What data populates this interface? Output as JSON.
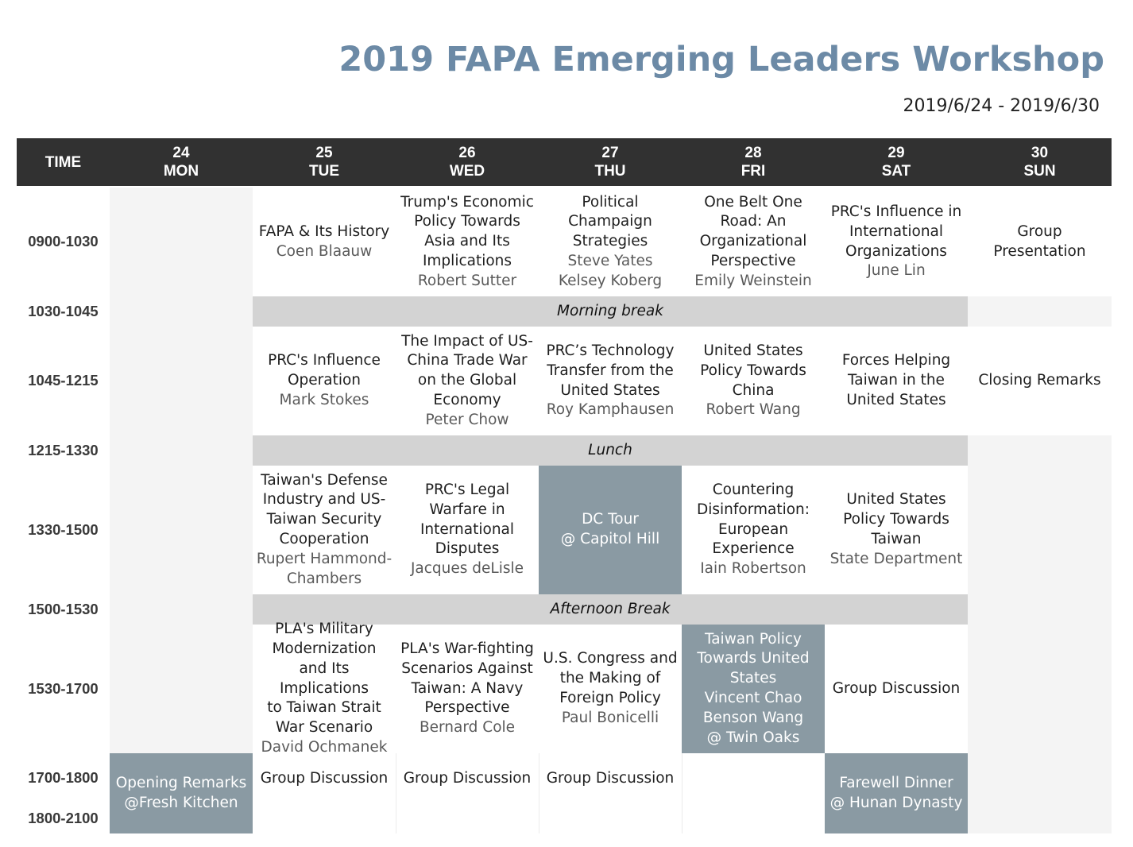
{
  "header": {
    "title": "2019 FAPA Emerging Leaders Workshop",
    "dates": "2019/6/24 - 2019/6/30"
  },
  "columns": {
    "time": "TIME",
    "days": [
      {
        "num": "24",
        "day": "MON"
      },
      {
        "num": "25",
        "day": "TUE"
      },
      {
        "num": "26",
        "day": "WED"
      },
      {
        "num": "27",
        "day": "THU"
      },
      {
        "num": "28",
        "day": "FRI"
      },
      {
        "num": "29",
        "day": "SAT"
      },
      {
        "num": "30",
        "day": "SUN"
      }
    ]
  },
  "times": [
    "0900-1030",
    "1030-1045",
    "1045-1215",
    "1215-1330",
    "1330-1500",
    "1500-1530",
    "1530-1700",
    "1700-1800",
    "1800-2100"
  ],
  "breaks": {
    "morning": "Morning break",
    "lunch": "Lunch",
    "afternoon": "Afternoon Break"
  },
  "sessions": {
    "s0900": {
      "tue": {
        "title": [
          "FAPA & Its History"
        ],
        "speaker": [
          "Coen Blaauw"
        ]
      },
      "wed": {
        "title": [
          "Trump's Economic",
          "Policy Towards",
          "Asia and Its",
          "Implications"
        ],
        "speaker": [
          "Robert Sutter"
        ]
      },
      "thu": {
        "title": [
          "Political",
          "Champaign",
          "Strategies"
        ],
        "speaker": [
          "Steve Yates",
          "Kelsey Koberg"
        ]
      },
      "fri": {
        "title": [
          "One Belt One",
          "Road: An",
          "Organizational",
          "Perspective"
        ],
        "speaker": [
          "Emily Weinstein"
        ]
      },
      "sat": {
        "title": [
          "PRC's Influence in",
          "International",
          "Organizations"
        ],
        "speaker": [
          "June Lin"
        ]
      },
      "sun": {
        "title": [
          "Group",
          "Presentation"
        ],
        "speaker": []
      }
    },
    "s1045": {
      "tue": {
        "title": [
          "PRC's Influence",
          "Operation"
        ],
        "speaker": [
          "Mark Stokes"
        ]
      },
      "wed": {
        "title": [
          "The Impact of US-",
          "China Trade War",
          "on the Global",
          "Economy"
        ],
        "speaker": [
          "Peter Chow"
        ]
      },
      "thu": {
        "title": [
          "PRC’s Technology",
          "Transfer from the",
          "United States"
        ],
        "speaker": [
          "Roy Kamphausen"
        ]
      },
      "fri": {
        "title": [
          "United States",
          "Policy Towards",
          "China"
        ],
        "speaker": [
          "Robert Wang"
        ]
      },
      "sat": {
        "title": [
          "Forces Helping",
          "Taiwan in the",
          "United States"
        ],
        "speaker": []
      },
      "sun": {
        "title": [
          "Closing Remarks"
        ],
        "speaker": []
      }
    },
    "s1330": {
      "tue": {
        "title": [
          "Taiwan's Defense",
          "Industry and US-",
          "Taiwan Security",
          "Cooperation"
        ],
        "speaker": [
          "Rupert Hammond-",
          "Chambers"
        ]
      },
      "wed": {
        "title": [
          "PRC's Legal",
          "Warfare in",
          "International",
          "Disputes"
        ],
        "speaker": [
          "Jacques deLisle"
        ]
      },
      "thu": {
        "title": [
          "DC Tour",
          "@ Capitol Hill"
        ],
        "speaker": []
      },
      "fri": {
        "title": [
          "Countering",
          "Disinformation:",
          "European",
          "Experience"
        ],
        "speaker": [
          "Iain Robertson"
        ]
      },
      "sat": {
        "title": [
          "United States",
          "Policy Towards",
          "Taiwan"
        ],
        "speaker": [
          "State Department"
        ]
      }
    },
    "s1530": {
      "tue": {
        "title": [
          "PLA's Military",
          "Modernization",
          "and Its Implications",
          "to Taiwan Strait",
          "War Scenario"
        ],
        "speaker": [
          "David Ochmanek"
        ]
      },
      "wed": {
        "title": [
          "PLA's War-fighting",
          "Scenarios Against",
          "Taiwan: A Navy",
          "Perspective"
        ],
        "speaker": [
          "Bernard Cole"
        ]
      },
      "thu": {
        "title": [
          "U.S. Congress and",
          "the Making of",
          "Foreign Policy"
        ],
        "speaker": [
          "Paul Bonicelli"
        ]
      },
      "fri": {
        "title": [
          "Taiwan Policy",
          "Towards United",
          "States",
          "Vincent Chao",
          "Benson Wang",
          "@ Twin Oaks"
        ],
        "speaker": []
      },
      "sat": {
        "title": [
          "Group Discussion"
        ],
        "speaker": []
      }
    },
    "s1700": {
      "mon": {
        "title": [
          "Opening Remarks",
          "@Fresh Kitchen"
        ],
        "speaker": []
      },
      "tue": {
        "title": [
          "Group Discussion"
        ],
        "speaker": []
      },
      "wed": {
        "title": [
          "Group Discussion"
        ],
        "speaker": []
      },
      "thu": {
        "title": [
          "Group Discussion"
        ],
        "speaker": []
      },
      "sat": {
        "title": [
          "Farewell Dinner",
          "@ Hunan Dynasty"
        ],
        "speaker": []
      }
    }
  },
  "colors": {
    "title": "#6c8aa6",
    "header_bg": "#313131",
    "break_bg": "#d3d3d3",
    "special_bg": "#8a9aa3",
    "empty_bg": "#f4f4f4"
  }
}
